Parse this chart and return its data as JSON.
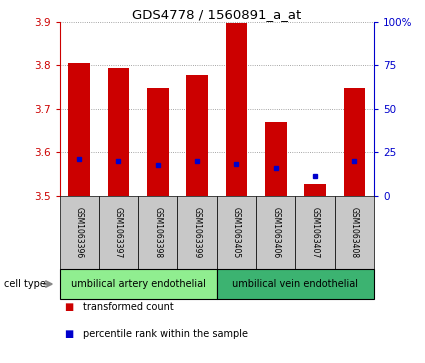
{
  "title": "GDS4778 / 1560891_a_at",
  "samples": [
    "GSM1063396",
    "GSM1063397",
    "GSM1063398",
    "GSM1063399",
    "GSM1063405",
    "GSM1063406",
    "GSM1063407",
    "GSM1063408"
  ],
  "red_values": [
    3.805,
    3.793,
    3.747,
    3.778,
    3.897,
    3.669,
    3.527,
    3.748
  ],
  "blue_values": [
    3.585,
    3.58,
    3.572,
    3.58,
    3.573,
    3.565,
    3.547,
    3.58
  ],
  "bar_bottom": 3.5,
  "ylim_left": [
    3.5,
    3.9
  ],
  "ylim_right": [
    0,
    100
  ],
  "yticks_left": [
    3.5,
    3.6,
    3.7,
    3.8,
    3.9
  ],
  "yticks_right": [
    0,
    25,
    50,
    75,
    100
  ],
  "ytick_labels_right": [
    "0",
    "25",
    "50",
    "75",
    "100%"
  ],
  "red_color": "#CC0000",
  "blue_color": "#0000CC",
  "grid_color": "#888888",
  "bar_width": 0.55,
  "cell_groups": [
    {
      "label": "umbilical artery endothelial",
      "indices": [
        0,
        1,
        2,
        3
      ]
    },
    {
      "label": "umbilical vein endothelial",
      "indices": [
        4,
        5,
        6,
        7
      ]
    }
  ],
  "group_colors": [
    "#90EE90",
    "#3CB371"
  ],
  "cell_type_label": "cell type",
  "legend_items": [
    {
      "label": "transformed count",
      "color": "#CC0000"
    },
    {
      "label": "percentile rank within the sample",
      "color": "#0000CC"
    }
  ],
  "label_bg_color": "#c8c8c8",
  "group_bg_color_1": "#90EE90",
  "group_bg_color_2": "#3CB371"
}
